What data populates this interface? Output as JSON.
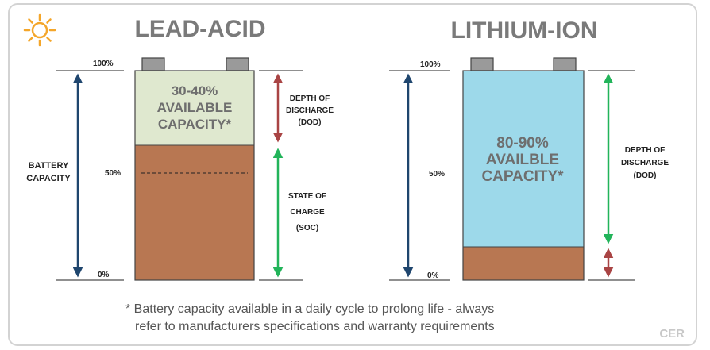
{
  "titles": {
    "left": "LEAD-ACID",
    "right": "LITHIUM-ION"
  },
  "lead_acid": {
    "level_100": "100%",
    "level_50": "50%",
    "level_0": "0%",
    "battery_capacity": [
      "BATTERY",
      "CAPACITY"
    ],
    "available_capacity": [
      "30-40%",
      "AVAILABLE",
      "CAPACITY*"
    ],
    "depth_of_discharge": [
      "DEPTH OF",
      "DISCHARGE",
      "(DOD)"
    ],
    "state_of_charge": [
      "STATE OF",
      "CHARGE",
      "(SOC)"
    ]
  },
  "lithium_ion": {
    "level_100": "100%",
    "level_50": "50%",
    "level_0": "0%",
    "available_capacity": [
      "80-90%",
      "AVAILBLE",
      "CAPACITY*"
    ],
    "depth_of_discharge": [
      "DEPTH OF",
      "DISCHARGE",
      "(DOD)"
    ]
  },
  "footnote": [
    "* Battery capacity available in a daily cycle to prolong life - always",
    "refer to manufacturers specifications and warranty requirements"
  ],
  "watermark": "CER",
  "icons": {
    "logo": "sun-icon"
  },
  "colors": {
    "lead_available": "#dfe8cf",
    "lead_body": "#b87752",
    "lithium_available": "#9dd9ea",
    "lithium_body": "#b87752",
    "terminal": "#9a9a9a",
    "capacity_arrow": "#1f466e",
    "dod_arrow_lead": "#a94444",
    "green_arrow": "#22b45a",
    "dod_arrow_lithium_small": "#a94444"
  }
}
